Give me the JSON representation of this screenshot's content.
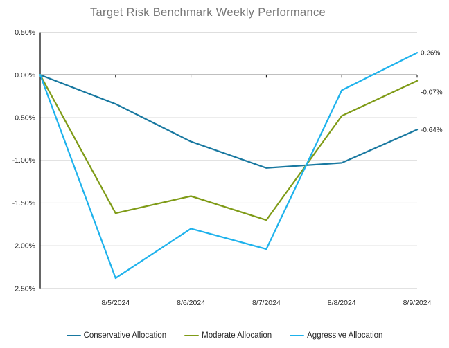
{
  "title": "Target Risk Benchmark Weekly Performance",
  "colors": {
    "conservative": "#1878A0",
    "moderate": "#7F9B17",
    "aggressive": "#1EB2EC",
    "gridline": "#D9D9D9",
    "axis": "#000000",
    "title_text": "#767676",
    "tick_text": "#262626"
  },
  "chart_data": {
    "type": "line",
    "title": "Target Risk Benchmark Weekly Performance",
    "categories": [
      "",
      "8/5/2024",
      "8/6/2024",
      "8/7/2024",
      "8/8/2024",
      "8/9/2024"
    ],
    "series": [
      {
        "name": "Conservative Allocation",
        "color": "#1878A0",
        "values": [
          0.0,
          -0.34,
          -0.78,
          -1.09,
          -1.03,
          -0.64
        ],
        "end_label": "-0.64%",
        "end_label_offset": 0,
        "leader_line": false
      },
      {
        "name": "Moderate Allocation",
        "color": "#7F9B17",
        "values": [
          0.0,
          -1.62,
          -1.42,
          -1.7,
          -0.48,
          -0.07
        ],
        "end_label": "-0.07%",
        "end_label_offset": 16,
        "leader_line": true
      },
      {
        "name": "Aggressive Allocation",
        "color": "#1EB2EC",
        "values": [
          0.0,
          -2.38,
          -1.8,
          -2.04,
          -0.18,
          0.26
        ],
        "end_label": "0.26%",
        "end_label_offset": 0,
        "leader_line": false
      }
    ],
    "y_axis": {
      "min": -2.5,
      "max": 0.5,
      "step": 0.5,
      "tick_labels": [
        "0.50%",
        "0.00%",
        "-0.50%",
        "-1.00%",
        "-1.50%",
        "-2.00%",
        "-2.50%"
      ],
      "format": "0.00%"
    },
    "x_axis": {
      "tick_labels": [
        "8/5/2024",
        "8/6/2024",
        "8/7/2024",
        "8/8/2024",
        "8/9/2024"
      ]
    },
    "grid": true,
    "legend_position": "bottom"
  }
}
